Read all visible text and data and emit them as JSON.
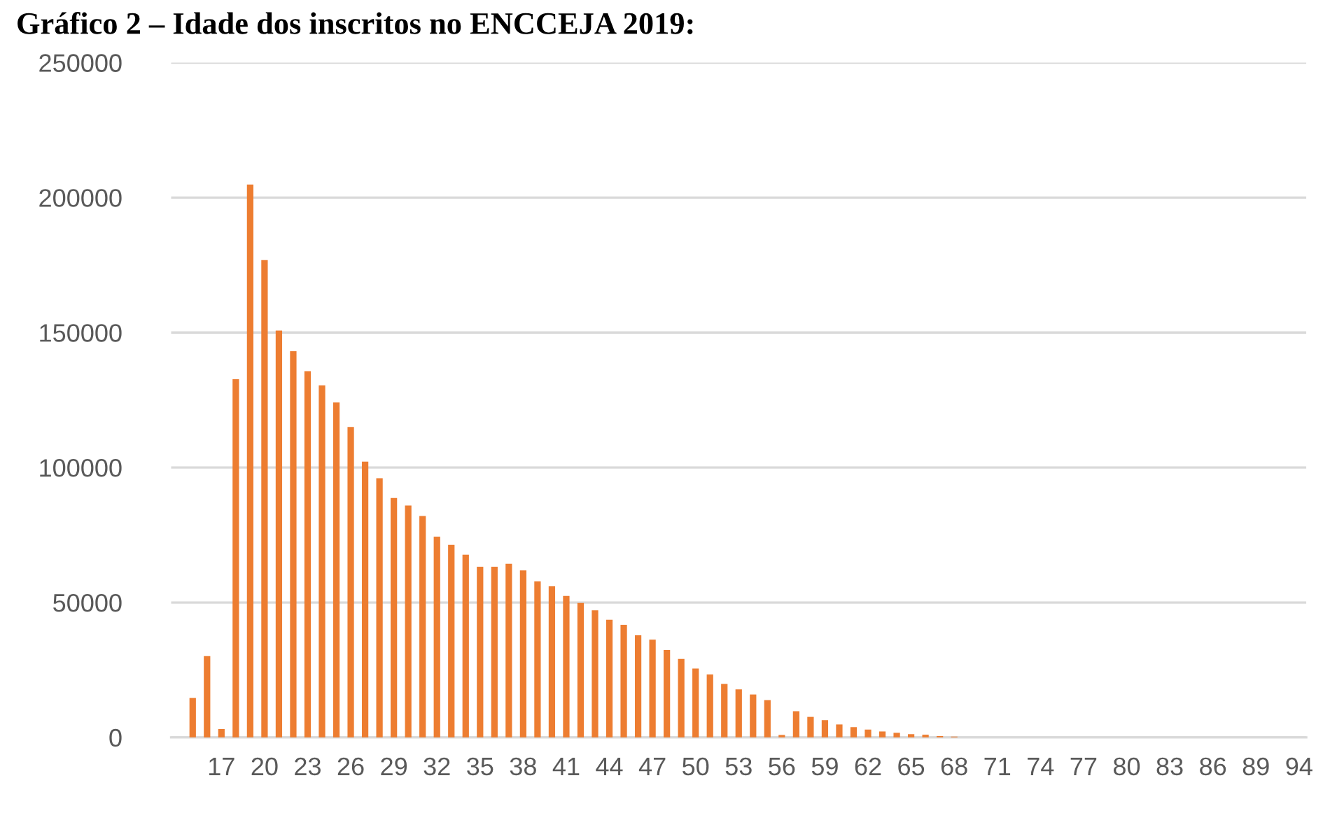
{
  "chart_data": {
    "type": "bar",
    "title": "Gráfico 2 – Idade dos inscritos no ENCCEJA 2019:",
    "categories": [
      null,
      null,
      null,
      "17",
      null,
      null,
      "20",
      null,
      null,
      "23",
      null,
      null,
      "26",
      null,
      null,
      "29",
      null,
      null,
      "32",
      null,
      null,
      "35",
      null,
      null,
      "38",
      null,
      null,
      "41",
      null,
      null,
      "44",
      null,
      null,
      "47",
      null,
      null,
      "50",
      null,
      null,
      "53",
      null,
      null,
      "56",
      null,
      null,
      "59",
      null,
      null,
      "62",
      null,
      null,
      "65",
      null,
      null,
      "68",
      null,
      null,
      "71",
      null,
      null,
      "74",
      null,
      null,
      "77",
      null,
      null,
      "80",
      null,
      null,
      "83",
      null,
      null,
      "86",
      null,
      null,
      "89",
      null,
      null,
      "94"
    ],
    "values": [
      0,
      14600,
      30100,
      3100,
      132700,
      204800,
      176800,
      150700,
      143100,
      135700,
      130400,
      124100,
      115000,
      102200,
      96000,
      88700,
      85900,
      82000,
      74400,
      71300,
      67700,
      63200,
      63200,
      64300,
      61900,
      57800,
      56000,
      52400,
      49800,
      47100,
      43600,
      41700,
      37800,
      36200,
      32400,
      29100,
      25500,
      23300,
      19800,
      17800,
      15900,
      13800,
      900,
      9700,
      7600,
      6400,
      4800,
      3800,
      2900,
      2200,
      1700,
      1200,
      1000,
      500,
      300,
      0,
      0,
      0,
      0,
      0,
      0,
      0,
      0,
      0,
      0,
      0,
      0,
      0,
      0,
      0,
      0,
      0,
      0,
      0,
      0,
      0,
      0,
      0,
      0
    ],
    "color": "#ed7d31",
    "ylim": [
      0,
      250000
    ],
    "yticks": [
      0,
      50000,
      100000,
      150000,
      200000,
      250000
    ],
    "grid": "y"
  }
}
